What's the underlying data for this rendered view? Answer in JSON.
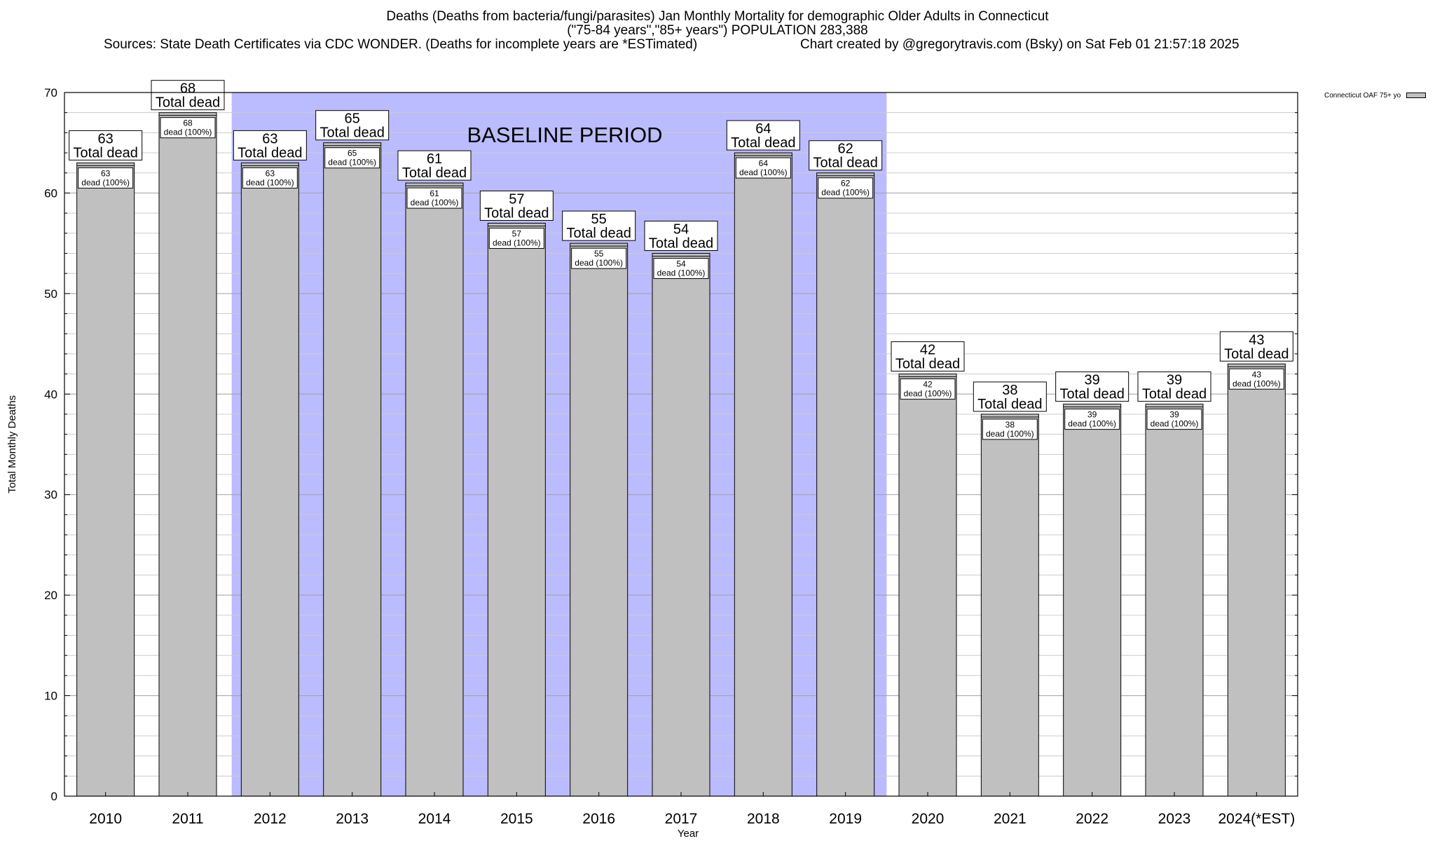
{
  "title": {
    "line1": "Deaths (Deaths from bacteria/fungi/parasites) Jan Monthly Mortality for demographic Older Adults in Connecticut",
    "line2": "(\"75-84 years\",\"85+ years\") POPULATION 283,388",
    "sources": "Sources: State Death Certificates via CDC WONDER. (Deaths for incomplete years are *ESTimated)",
    "credit": "Chart created by @gregorytravis.com (Bsky) on Sat Feb 01 21:57:18 2025"
  },
  "legend": {
    "label": "Connecticut OAF 75+ yo"
  },
  "chart_data": {
    "type": "bar",
    "xlabel": "Year",
    "ylabel": "Total Monthly Deaths",
    "ylim": [
      0,
      70
    ],
    "yticks": [
      0,
      10,
      20,
      30,
      40,
      50,
      60,
      70
    ],
    "grid": true,
    "categories": [
      "2010",
      "2011",
      "2012",
      "2013",
      "2014",
      "2015",
      "2016",
      "2017",
      "2018",
      "2019",
      "2020",
      "2021",
      "2022",
      "2023",
      "2024(*EST)"
    ],
    "series": [
      {
        "name": "Connecticut OAF 75+ yo",
        "values": [
          63,
          68,
          63,
          65,
          61,
          57,
          55,
          54,
          64,
          62,
          42,
          38,
          39,
          39,
          43
        ]
      }
    ],
    "top_label_suffix": "Total dead",
    "inner_label_suffix": "dead (100%)",
    "baseline": {
      "label": "BASELINE PERIOD",
      "from": "2012",
      "to": "2019",
      "color": "#bbbbff"
    },
    "bar_color": "#c0c0c0"
  }
}
